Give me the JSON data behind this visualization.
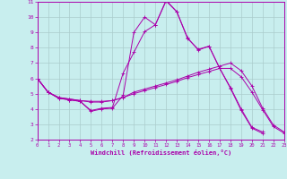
{
  "xlabel": "Windchill (Refroidissement éolien,°C)",
  "background_color": "#c8eeee",
  "grid_color": "#aacccc",
  "line_color": "#aa00aa",
  "xlim": [
    0,
    23
  ],
  "ylim": [
    2,
    11
  ],
  "xticks": [
    0,
    1,
    2,
    3,
    4,
    5,
    6,
    7,
    8,
    9,
    10,
    11,
    12,
    13,
    14,
    15,
    16,
    17,
    18,
    19,
    20,
    21,
    22,
    23
  ],
  "yticks": [
    2,
    3,
    4,
    5,
    6,
    7,
    8,
    9,
    10,
    11
  ],
  "lines": [
    {
      "x": [
        0,
        1,
        2,
        3,
        4,
        5,
        6,
        7,
        8,
        9,
        10,
        11,
        12,
        13,
        14,
        15,
        16,
        17,
        18,
        19,
        20,
        21
      ],
      "y": [
        6.0,
        5.1,
        4.7,
        4.6,
        4.5,
        3.85,
        4.0,
        4.05,
        4.9,
        9.0,
        10.0,
        9.5,
        11.1,
        10.35,
        8.6,
        7.9,
        8.1,
        6.65,
        5.35,
        3.9,
        2.75,
        2.4
      ],
      "marker": true
    },
    {
      "x": [
        0,
        1,
        2,
        3,
        4,
        5,
        6,
        7,
        8,
        9,
        10,
        11,
        12,
        13,
        14,
        15,
        16,
        17,
        18,
        19,
        20,
        21,
        22,
        23
      ],
      "y": [
        6.0,
        5.1,
        4.75,
        4.65,
        4.55,
        4.5,
        4.5,
        4.55,
        4.75,
        5.0,
        5.2,
        5.4,
        5.6,
        5.8,
        6.05,
        6.25,
        6.45,
        6.65,
        6.65,
        6.1,
        5.1,
        3.95,
        2.85,
        2.42
      ],
      "marker": true
    },
    {
      "x": [
        0,
        1,
        2,
        3,
        4,
        5,
        6,
        7,
        8,
        9,
        10,
        11,
        12,
        13,
        14,
        15,
        16,
        17,
        18,
        19,
        20,
        21,
        22,
        23
      ],
      "y": [
        6.0,
        5.1,
        4.75,
        4.65,
        4.55,
        4.45,
        4.45,
        4.55,
        4.75,
        5.1,
        5.3,
        5.5,
        5.7,
        5.9,
        6.15,
        6.4,
        6.6,
        6.8,
        7.0,
        6.5,
        5.5,
        4.05,
        2.95,
        2.5
      ],
      "marker": true
    },
    {
      "x": [
        0,
        1,
        2,
        3,
        4,
        5,
        6,
        7,
        8,
        9,
        10,
        11,
        12,
        13,
        14,
        15,
        16,
        17,
        18,
        19,
        20,
        21
      ],
      "y": [
        6.0,
        5.1,
        4.7,
        4.6,
        4.5,
        3.9,
        4.05,
        4.1,
        6.35,
        7.7,
        9.05,
        9.5,
        11.05,
        10.35,
        8.65,
        7.85,
        8.1,
        6.65,
        5.4,
        4.0,
        2.8,
        2.5
      ],
      "marker": true
    }
  ]
}
